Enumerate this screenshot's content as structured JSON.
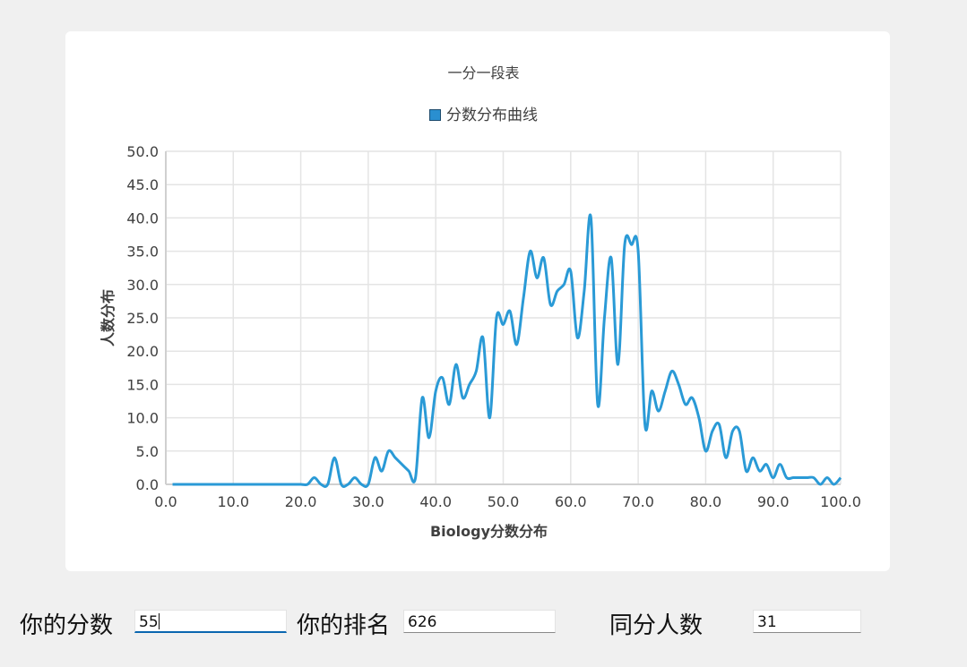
{
  "chart_data": {
    "type": "line",
    "title": "一分一段表",
    "xlabel": "Biology分数分布",
    "ylabel": "人数分布",
    "xlim": [
      0,
      100
    ],
    "ylim": [
      0,
      50
    ],
    "x_ticks": [
      "0.0",
      "10.0",
      "20.0",
      "30.0",
      "40.0",
      "50.0",
      "60.0",
      "70.0",
      "80.0",
      "90.0",
      "100.0"
    ],
    "y_ticks": [
      "0.0",
      "5.0",
      "10.0",
      "15.0",
      "20.0",
      "25.0",
      "30.0",
      "35.0",
      "40.0",
      "45.0",
      "50.0"
    ],
    "grid": true,
    "legend_position": "top",
    "smooth": true,
    "color": "#2a9ad6",
    "series": [
      {
        "name": "分数分布曲线",
        "x": [
          1,
          2,
          3,
          4,
          5,
          6,
          7,
          8,
          9,
          10,
          11,
          12,
          13,
          14,
          15,
          16,
          17,
          18,
          19,
          20,
          21,
          22,
          23,
          24,
          25,
          26,
          27,
          28,
          29,
          30,
          31,
          32,
          33,
          34,
          35,
          36,
          37,
          38,
          39,
          40,
          41,
          42,
          43,
          44,
          45,
          46,
          47,
          48,
          49,
          50,
          51,
          52,
          53,
          54,
          55,
          56,
          57,
          58,
          59,
          60,
          61,
          62,
          63,
          64,
          65,
          66,
          67,
          68,
          69,
          70,
          71,
          72,
          73,
          74,
          75,
          76,
          77,
          78,
          79,
          80,
          81,
          82,
          83,
          84,
          85,
          86,
          87,
          88,
          89,
          90,
          91,
          92,
          93,
          94,
          95,
          96,
          97,
          98,
          99,
          100
        ],
        "y": [
          0,
          0,
          0,
          0,
          0,
          0,
          0,
          0,
          0,
          0,
          0,
          0,
          0,
          0,
          0,
          0,
          0,
          0,
          0,
          0,
          0,
          1,
          0,
          0,
          4,
          0,
          0,
          1,
          0,
          0,
          4,
          2,
          5,
          4,
          3,
          2,
          1,
          13,
          7,
          14,
          16,
          12,
          18,
          13,
          15,
          17,
          22,
          10,
          25,
          24,
          26,
          21,
          28,
          35,
          31,
          34,
          27,
          29,
          30,
          32,
          22,
          29,
          40,
          12,
          25,
          34,
          18,
          36,
          36,
          35,
          9,
          14,
          11,
          14,
          17,
          15,
          12,
          13,
          10,
          5,
          8,
          9,
          4,
          8,
          8,
          2,
          4,
          2,
          3,
          1,
          3,
          1,
          1,
          1,
          1,
          1,
          0,
          1,
          0,
          1
        ]
      }
    ]
  },
  "legend": {
    "label": "分数分布曲线"
  },
  "controls": {
    "score_label": "你的分数",
    "score_value": "55",
    "rank_label": "你的排名",
    "rank_value": "626",
    "same_label": "同分人数",
    "same_value": "31"
  }
}
